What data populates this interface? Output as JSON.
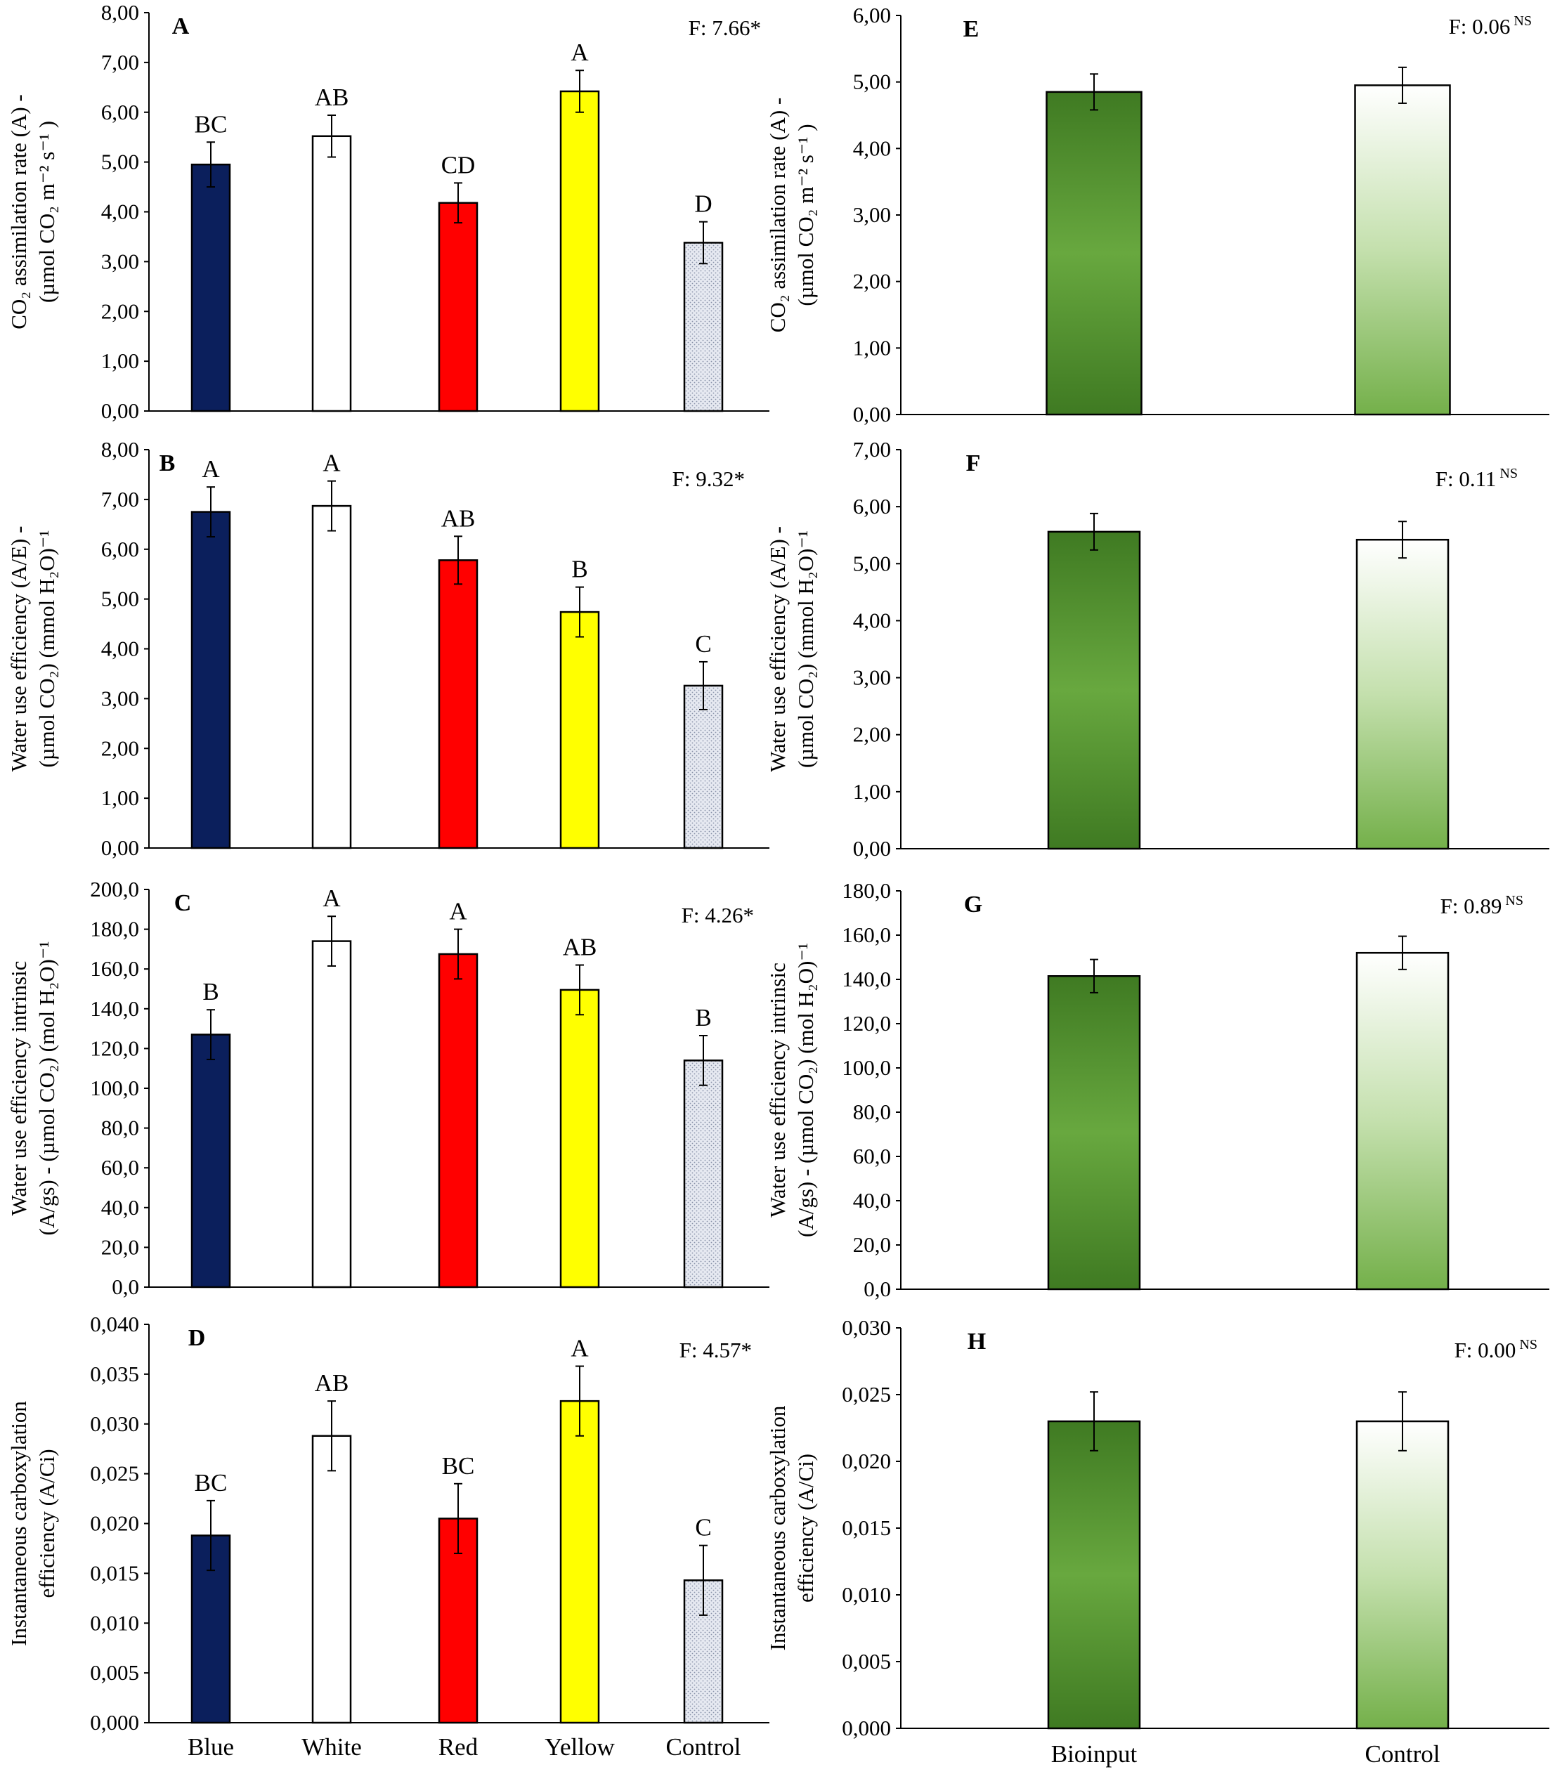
{
  "chart_data": [
    {
      "type": "bar",
      "panel": "A",
      "stat": "F: 7.66*",
      "ylabel_lines": [
        "CO₂ assimilation rate (A) -",
        "(µmol CO₂ m⁻² s⁻¹ )"
      ],
      "ylim": [
        0,
        8
      ],
      "ticks": [
        "0,00",
        "1,00",
        "2,00",
        "3,00",
        "4,00",
        "5,00",
        "6,00",
        "7,00",
        "8,00"
      ],
      "categories": [
        "Blue",
        "White",
        "Red",
        "Yellow",
        "Control"
      ],
      "values": [
        4.95,
        5.52,
        4.18,
        6.42,
        3.38
      ],
      "errors": [
        0.45,
        0.42,
        0.4,
        0.42,
        0.42
      ],
      "letters": [
        "BC",
        "AB",
        "CD",
        "A",
        "D"
      ]
    },
    {
      "type": "bar",
      "panel": "B",
      "stat": "F: 9.32*",
      "ylabel_lines": [
        "Water use efficiency (A/E) -",
        "(µmol CO₂) (mmol H₂O)⁻¹"
      ],
      "ylim": [
        0,
        8
      ],
      "ticks": [
        "0,00",
        "1,00",
        "2,00",
        "3,00",
        "4,00",
        "5,00",
        "6,00",
        "7,00",
        "8,00"
      ],
      "categories": [
        "Blue",
        "White",
        "Red",
        "Yellow",
        "Control"
      ],
      "values": [
        6.75,
        6.87,
        5.78,
        4.74,
        3.26
      ],
      "errors": [
        0.5,
        0.5,
        0.48,
        0.5,
        0.48
      ],
      "letters": [
        "A",
        "A",
        "AB",
        "B",
        "C"
      ]
    },
    {
      "type": "bar",
      "panel": "C",
      "stat": "F: 4.26*",
      "ylabel_lines": [
        "Water use efficiency intrinsic",
        "(A/gs) -  (µmol CO₂) (mol H₂O)⁻¹"
      ],
      "ylim": [
        0,
        200
      ],
      "ticks": [
        "0,0",
        "20,0",
        "40,0",
        "60,0",
        "80,0",
        "100,0",
        "120,0",
        "140,0",
        "160,0",
        "180,0",
        "200,0"
      ],
      "categories": [
        "Blue",
        "White",
        "Red",
        "Yellow",
        "Control"
      ],
      "values": [
        127,
        174,
        167.5,
        149.5,
        114
      ],
      "errors": [
        12.5,
        12.5,
        12.5,
        12.5,
        12.5
      ],
      "letters": [
        "B",
        "A",
        "A",
        "AB",
        "B"
      ]
    },
    {
      "type": "bar",
      "panel": "D",
      "stat": "F: 4.57*",
      "ylabel_lines": [
        "Instantaneous carboxylation",
        "efficiency (A/Ci)"
      ],
      "ylim": [
        0,
        0.04
      ],
      "ticks": [
        "0,000",
        "0,005",
        "0,010",
        "0,015",
        "0,020",
        "0,025",
        "0,030",
        "0,035",
        "0,040"
      ],
      "categories": [
        "Blue",
        "White",
        "Red",
        "Yellow",
        "Control"
      ],
      "values": [
        0.0188,
        0.0288,
        0.0205,
        0.0323,
        0.0143
      ],
      "errors": [
        0.0035,
        0.0035,
        0.0035,
        0.0035,
        0.0035
      ],
      "letters": [
        "BC",
        "AB",
        "BC",
        "A",
        "C"
      ],
      "show_categories": true
    },
    {
      "type": "bar",
      "panel": "E",
      "stat": "F: 0.06",
      "stat_sup": "NS",
      "ylabel_lines": [
        "CO₂ assimilation rate (A) -",
        "(µmol CO₂ m⁻² s⁻¹ )"
      ],
      "ylim": [
        0,
        6
      ],
      "ticks": [
        "0,00",
        "1,00",
        "2,00",
        "3,00",
        "4,00",
        "5,00",
        "6,00"
      ],
      "categories": [
        "Bioinput",
        "Control"
      ],
      "values": [
        4.85,
        4.95
      ],
      "errors": [
        0.27,
        0.27
      ]
    },
    {
      "type": "bar",
      "panel": "F",
      "stat": "F: 0.11",
      "stat_sup": "NS",
      "ylabel_lines": [
        "Water use efficiency (A/E) -",
        "(µmol CO₂) (mmol H₂O)⁻¹"
      ],
      "ylim": [
        0,
        7
      ],
      "ticks": [
        "0,00",
        "1,00",
        "2,00",
        "3,00",
        "4,00",
        "5,00",
        "6,00",
        "7,00"
      ],
      "categories": [
        "Bioinput",
        "Control"
      ],
      "values": [
        5.56,
        5.42
      ],
      "errors": [
        0.32,
        0.32
      ]
    },
    {
      "type": "bar",
      "panel": "G",
      "stat": "F: 0.89",
      "stat_sup": "NS",
      "ylabel_lines": [
        "Water use efficiency intrinsic",
        "(A/gs) -  (µmol CO₂) (mol H₂O)⁻¹"
      ],
      "ylim": [
        0,
        180
      ],
      "ticks": [
        "0,0",
        "20,0",
        "40,0",
        "60,0",
        "80,0",
        "100,0",
        "120,0",
        "140,0",
        "160,0",
        "180,0"
      ],
      "categories": [
        "Bioinput",
        "Control"
      ],
      "values": [
        141.5,
        152
      ],
      "errors": [
        7.5,
        7.5
      ]
    },
    {
      "type": "bar",
      "panel": "H",
      "stat": "F: 0.00",
      "stat_sup": "NS",
      "ylabel_lines": [
        "Instantaneous carboxylation",
        "efficiency (A/Ci)"
      ],
      "ylim": [
        0,
        0.03
      ],
      "ticks": [
        "0,000",
        "0,005",
        "0,010",
        "0,015",
        "0,020",
        "0,025",
        "0,030"
      ],
      "categories": [
        "Bioinput",
        "Control"
      ],
      "values": [
        0.023,
        0.023
      ],
      "errors": [
        0.0022,
        0.0022
      ],
      "show_categories": true
    }
  ],
  "colors": {
    "Blue": "#0b1f5c",
    "White": "#ffffff",
    "Red": "#ff0000",
    "Yellow": "#ffff00",
    "Control": "#d8dce8",
    "Bioinput": "#4f8a2e",
    "ControlGreen": "#7fba52"
  }
}
